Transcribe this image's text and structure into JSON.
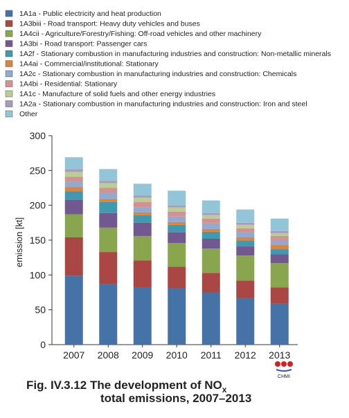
{
  "chart_data": {
    "type": "stacked_bar",
    "title": "Fig. IV.3.12  The development of NO",
    "title_subscript": "x",
    "title_line2": "total emissions, 2007–2013",
    "logo_text": "CHMI",
    "y_label": "emission [kt]",
    "categories": [
      "2007",
      "2008",
      "2009",
      "2010",
      "2011",
      "2012",
      "2013"
    ],
    "ylim": [
      0,
      300
    ],
    "yticks": [
      0,
      50,
      100,
      150,
      200,
      250,
      300
    ],
    "series": [
      {
        "name": "1A1a - Public electricity and heat production",
        "color": "#4572a7",
        "values": [
          99,
          87,
          82,
          81,
          75,
          67,
          59
        ]
      },
      {
        "name": "1A3biii - Road transport: Heavy duty vehicles and buses",
        "color": "#aa4643",
        "values": [
          55,
          46,
          39,
          31,
          28,
          25,
          23
        ]
      },
      {
        "name": "1A4cii - Agriculture/Forestry/Fishing: Off-road vehicles and other machinery",
        "color": "#89a54e",
        "values": [
          33,
          35,
          35,
          34,
          35,
          36,
          35
        ]
      },
      {
        "name": "1A3bi - Road transport: Passenger cars",
        "color": "#71588f",
        "values": [
          21,
          21,
          19,
          15,
          14,
          13,
          13
        ]
      },
      {
        "name": "1A2f - Stationary combustion in manufacturing industries and construction: Non-metallic minerals",
        "color": "#4198af",
        "values": [
          12,
          16,
          11,
          11,
          10,
          8,
          7
        ]
      },
      {
        "name": "1A4ai - Commercial/institutional: Stationary",
        "color": "#db843d",
        "values": [
          6,
          4,
          4,
          4,
          4,
          5,
          6
        ]
      },
      {
        "name": "1A2c - Stationary combustion in manufacturing industries and construction: Chemicals",
        "color": "#93a9cf",
        "values": [
          8,
          9,
          7,
          8,
          8,
          7,
          7
        ]
      },
      {
        "name": "1A4bi - Residential: Stationary",
        "color": "#d19392",
        "values": [
          7,
          7,
          8,
          7,
          7,
          6,
          6
        ]
      },
      {
        "name": "1A1c - Manufacture of solid fuels and other energy industries",
        "color": "#b9cd96",
        "values": [
          7,
          7,
          6,
          6,
          5,
          5,
          4
        ]
      },
      {
        "name": "1A2a - Stationary combustion in manufacturing industries and construction: Iron and steel",
        "color": "#a99bbd",
        "values": [
          4,
          3,
          3,
          3,
          3,
          3,
          3
        ]
      },
      {
        "name": "Other",
        "color": "#92c5d8",
        "values": [
          17,
          17,
          17,
          21,
          18,
          19,
          18
        ]
      }
    ]
  }
}
